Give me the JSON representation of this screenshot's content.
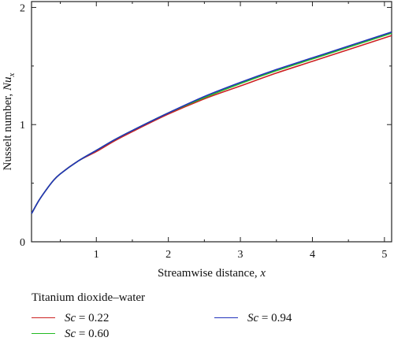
{
  "chart_data": {
    "type": "line",
    "title": "",
    "xlabel": "Streamwise distance, x",
    "ylabel": "Nusselt number, Nux",
    "xlim": [
      0.1,
      5.1
    ],
    "ylim": [
      0,
      2.05
    ],
    "xticks": [
      1,
      2,
      3,
      4,
      5
    ],
    "yticks": [
      0,
      1,
      2
    ],
    "grid": false,
    "legend_position": "bottom",
    "legend_title": "Titanium dioxide–water",
    "x": [
      0.1,
      0.2,
      0.3,
      0.4,
      0.5,
      0.75,
      1.0,
      1.25,
      1.5,
      2.0,
      2.5,
      3.0,
      3.5,
      4.0,
      4.5,
      5.1
    ],
    "series": [
      {
        "name": "Sc = 0.22",
        "symbol": "Sc",
        "value_text": " = 0.22",
        "color": "#cc2222",
        "values": [
          0.24,
          0.35,
          0.44,
          0.52,
          0.58,
          0.69,
          0.77,
          0.86,
          0.94,
          1.09,
          1.22,
          1.33,
          1.44,
          1.54,
          1.64,
          1.76
        ]
      },
      {
        "name": "Sc = 0.60",
        "symbol": "Sc",
        "value_text": " = 0.60",
        "color": "#22bb22",
        "values": [
          0.24,
          0.35,
          0.44,
          0.52,
          0.58,
          0.69,
          0.78,
          0.87,
          0.95,
          1.1,
          1.23,
          1.35,
          1.46,
          1.56,
          1.66,
          1.78
        ]
      },
      {
        "name": "Sc = 0.94",
        "symbol": "Sc",
        "value_text": " = 0.94",
        "color": "#2233bb",
        "values": [
          0.24,
          0.35,
          0.44,
          0.52,
          0.58,
          0.69,
          0.78,
          0.87,
          0.95,
          1.1,
          1.24,
          1.36,
          1.47,
          1.57,
          1.67,
          1.79
        ]
      }
    ]
  }
}
